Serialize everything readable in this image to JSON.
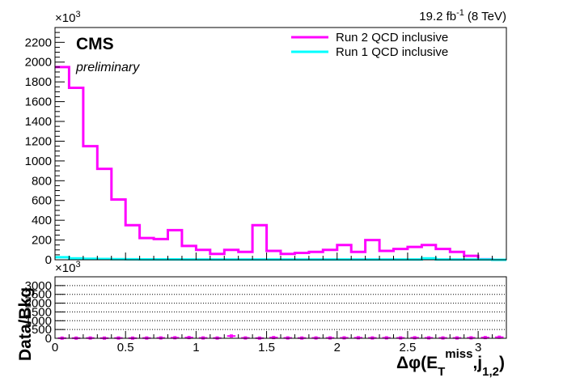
{
  "chart_data": [
    {
      "type": "line",
      "panel": "main",
      "step_histogram": true,
      "lumi_label": "19.2 fb",
      "lumi_exp": "-1",
      "lumi_energy": "(8 TeV)",
      "cms_label": "CMS",
      "preliminary_label": "preliminary",
      "multiplier_base": "×10",
      "multiplier_exp": "3",
      "xlim": [
        0,
        3.2
      ],
      "ylim": [
        0,
        2400
      ],
      "ymax_draw": 2350,
      "y_ticks": [
        0,
        200,
        400,
        600,
        800,
        1000,
        1200,
        1400,
        1600,
        1800,
        2000,
        2200
      ],
      "x_ticks": [
        0,
        0.5,
        1,
        1.5,
        2,
        2.5,
        3
      ],
      "x_tick_labels": [
        "0",
        "0.5",
        "1",
        "1.5",
        "2",
        "2.5",
        "3"
      ],
      "bin_edges": [
        0,
        0.1,
        0.2,
        0.3,
        0.4,
        0.5,
        0.6,
        0.7,
        0.8,
        0.9,
        1.0,
        1.1,
        1.2,
        1.3,
        1.4,
        1.5,
        1.6,
        1.7,
        1.8,
        1.9,
        2.0,
        2.1,
        2.2,
        2.3,
        2.4,
        2.5,
        2.6,
        2.7,
        2.8,
        2.9,
        3.0,
        3.1,
        3.2
      ],
      "legend_position": "top-right",
      "series": [
        {
          "name": "Run 2 QCD inclusive",
          "color": "#ff00ff",
          "values": [
            1950,
            1740,
            1150,
            920,
            610,
            350,
            220,
            210,
            300,
            140,
            100,
            60,
            100,
            80,
            350,
            90,
            60,
            70,
            80,
            100,
            150,
            80,
            200,
            90,
            110,
            130,
            150,
            110,
            80,
            40,
            5,
            0
          ]
        },
        {
          "name": "Run 1 QCD inclusive",
          "color": "#00ffff",
          "values": [
            25,
            15,
            10,
            8,
            6,
            5,
            4,
            4,
            4,
            3,
            3,
            3,
            3,
            3,
            3,
            3,
            3,
            3,
            3,
            3,
            3,
            3,
            3,
            3,
            3,
            3,
            15,
            3,
            3,
            3,
            3,
            0
          ]
        }
      ]
    },
    {
      "type": "scatter",
      "panel": "ratio",
      "ylabel": "Data/Bkg",
      "xlabel_main": "Δφ(E",
      "xlabel_sub1": "T",
      "xlabel_sup": "miss",
      "xlabel_mid": ",j",
      "xlabel_sub2": "1,2",
      "xlabel_close": ")",
      "multiplier_base": "×10",
      "multiplier_exp": "3",
      "xlim": [
        0,
        3.2
      ],
      "ylim": [
        0,
        3500
      ],
      "y_ticks": [
        0,
        500,
        1000,
        1500,
        2000,
        2500,
        3000
      ],
      "x_ticks": [
        0,
        0.5,
        1,
        1.5,
        2,
        2.5,
        3
      ],
      "x_tick_labels": [
        "0",
        "0.5",
        "1",
        "1.5",
        "2",
        "2.5",
        "3"
      ],
      "grid": true,
      "reference_line_color": "#ff0000",
      "marker_color": "#ff00ff",
      "points_x": [
        0.05,
        0.15,
        0.25,
        0.35,
        0.45,
        0.55,
        0.65,
        0.75,
        0.85,
        0.95,
        1.05,
        1.15,
        1.25,
        1.35,
        1.45,
        1.55,
        1.65,
        1.75,
        1.85,
        1.95,
        2.05,
        2.15,
        2.25,
        2.35,
        2.45,
        2.55,
        2.65,
        2.75,
        2.85,
        2.95,
        3.05,
        3.15
      ],
      "points_y": [
        10,
        10,
        15,
        10,
        15,
        10,
        15,
        20,
        30,
        40,
        20,
        15,
        130,
        20,
        10,
        40,
        20,
        15,
        20,
        20,
        25,
        30,
        20,
        25,
        20,
        30,
        25,
        20,
        20,
        25,
        40,
        60
      ]
    }
  ]
}
